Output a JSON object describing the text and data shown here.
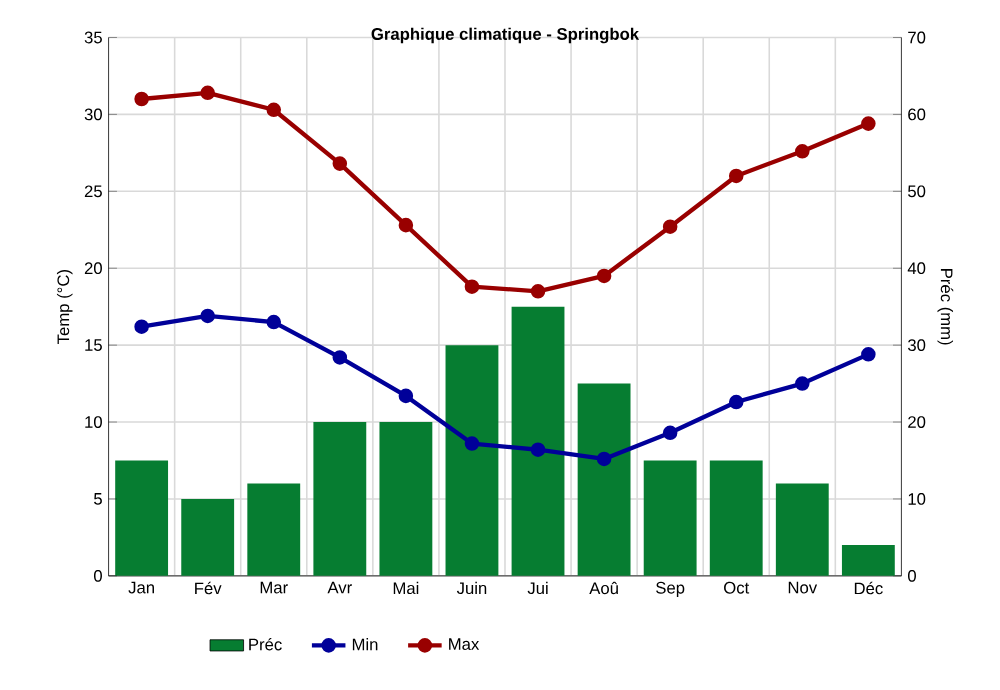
{
  "chart_data": {
    "type": "bar",
    "title": "Graphique climatique - Springbok",
    "ylabel": "Temp (°C)",
    "y2label": "Préc (mm)",
    "categories": [
      "Jan",
      "Fév",
      "Mar",
      "Avr",
      "Mai",
      "Juin",
      "Jui",
      "Aoû",
      "Sep",
      "Oct",
      "Nov",
      "Déc"
    ],
    "series": [
      {
        "name": "Préc",
        "axis": "y2",
        "color": "#067d31",
        "values": [
          15,
          10,
          12,
          20,
          20,
          30,
          35,
          25,
          15,
          15,
          12,
          4
        ]
      },
      {
        "name": "Min",
        "type": "line",
        "color": "#000099",
        "values": [
          16.2,
          16.9,
          16.5,
          14.2,
          11.7,
          8.6,
          8.2,
          7.6,
          9.3,
          11.3,
          12.5,
          14.4
        ]
      },
      {
        "name": "Max",
        "type": "line",
        "color": "#990000",
        "values": [
          31.0,
          31.4,
          30.3,
          26.8,
          22.8,
          18.8,
          18.5,
          19.5,
          22.7,
          26.0,
          27.6,
          29.4
        ]
      }
    ],
    "ylim": [
      0,
      35
    ],
    "yticks": [
      0,
      5,
      10,
      15,
      20,
      25,
      30,
      35
    ],
    "y2lim": [
      0,
      70
    ],
    "y2ticks": [
      0,
      10,
      20,
      30,
      40,
      50,
      60,
      70
    ],
    "grid": true,
    "legend": "bottom",
    "marker": "circle"
  }
}
